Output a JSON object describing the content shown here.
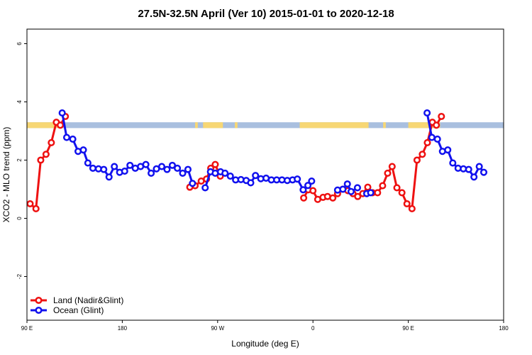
{
  "chart_data": {
    "type": "line",
    "title": "27.5N-32.5N April (Ver 10)   2015-01-01 to 2020-12-18",
    "xlabel": "Longitude (deg E)",
    "ylabel": "XCO2 - MLO trend (ppm)",
    "xlim": [
      90,
      270
    ],
    "ylim": [
      -3.5,
      6.5
    ],
    "x_ticks": [
      {
        "value": 90,
        "label": "90 E"
      },
      {
        "value": 126,
        "label": "180"
      },
      {
        "value": 162,
        "label": "90 W"
      },
      {
        "value": 198,
        "label": "0"
      },
      {
        "value": 234,
        "label": "90 E"
      },
      {
        "value": 270,
        "label": "180"
      }
    ],
    "y_ticks": [
      {
        "value": -2,
        "label": "-2"
      },
      {
        "value": 0,
        "label": "0"
      },
      {
        "value": 2,
        "label": "2"
      },
      {
        "value": 4,
        "label": "4"
      },
      {
        "value": 6,
        "label": "6"
      }
    ],
    "map_strip": {
      "y_range": [
        3.1,
        3.3
      ],
      "land_color": "#f7d774",
      "ocean_color": "#a9bfdf",
      "land_segments_x": [
        [
          90,
          102
        ],
        [
          153.5,
          154.5
        ],
        [
          156.5,
          164
        ],
        [
          168.5,
          169.5
        ],
        [
          193,
          219
        ],
        [
          224.5,
          225.5
        ],
        [
          234,
          246
        ]
      ]
    },
    "series": [
      {
        "name": "Land (Nadir&Glint)",
        "color": "#ee1111",
        "segments": [
          [
            [
              91.2,
              0.5
            ],
            [
              93.4,
              0.33
            ],
            [
              95.2,
              2.0
            ],
            [
              97.2,
              2.2
            ],
            [
              99.2,
              2.6
            ],
            [
              101.1,
              3.3
            ],
            [
              102.6,
              3.2
            ],
            [
              104.5,
              3.5
            ]
          ],
          [
            [
              151.5,
              1.07
            ],
            [
              153.5,
              1.12
            ],
            [
              155.8,
              1.28
            ],
            [
              157.8,
              1.35
            ],
            [
              159.4,
              1.72
            ],
            [
              161.1,
              1.85
            ],
            [
              163.0,
              1.45
            ]
          ],
          [
            [
              194.5,
              0.7
            ],
            [
              196.2,
              0.98
            ],
            [
              198.0,
              0.95
            ],
            [
              199.8,
              0.65
            ],
            [
              201.8,
              0.72
            ],
            [
              203.5,
              0.75
            ],
            [
              205.5,
              0.7
            ],
            [
              207.3,
              0.85
            ],
            [
              209.3,
              1.0
            ],
            [
              211.2,
              0.95
            ],
            [
              213.1,
              0.85
            ],
            [
              214.9,
              0.75
            ],
            [
              216.8,
              0.85
            ],
            [
              218.7,
              1.07
            ],
            [
              220.5,
              0.88
            ],
            [
              222.4,
              0.88
            ],
            [
              224.3,
              1.12
            ],
            [
              226.2,
              1.55
            ],
            [
              227.9,
              1.78
            ],
            [
              229.7,
              1.05
            ],
            [
              231.6,
              0.88
            ],
            [
              233.5,
              0.5
            ],
            [
              235.4,
              0.33
            ],
            [
              237.3,
              2.0
            ],
            [
              239.3,
              2.2
            ],
            [
              241.2,
              2.6
            ],
            [
              243.1,
              3.3
            ],
            [
              244.6,
              3.2
            ],
            [
              246.5,
              3.5
            ]
          ]
        ]
      },
      {
        "name": "Ocean (Glint)",
        "color": "#1111ee",
        "segments": [
          [
            [
              103.3,
              3.62
            ],
            [
              105.0,
              2.78
            ],
            [
              107.3,
              2.72
            ],
            [
              109.3,
              2.3
            ],
            [
              111.3,
              2.35
            ],
            [
              113.0,
              1.9
            ],
            [
              114.9,
              1.72
            ],
            [
              117.0,
              1.7
            ],
            [
              119.0,
              1.68
            ],
            [
              121.0,
              1.42
            ],
            [
              123.0,
              1.78
            ],
            [
              125.0,
              1.58
            ],
            [
              126.9,
              1.62
            ],
            [
              128.9,
              1.82
            ],
            [
              130.9,
              1.72
            ],
            [
              132.9,
              1.78
            ],
            [
              134.9,
              1.85
            ],
            [
              136.9,
              1.55
            ],
            [
              138.9,
              1.7
            ],
            [
              140.9,
              1.78
            ],
            [
              142.9,
              1.68
            ],
            [
              144.9,
              1.82
            ],
            [
              146.8,
              1.72
            ],
            [
              148.8,
              1.55
            ],
            [
              150.8,
              1.68
            ],
            [
              152.5,
              1.2
            ]
          ],
          [
            [
              157.3,
              1.05
            ],
            [
              159.3,
              1.6
            ],
            [
              161.1,
              1.55
            ],
            [
              163.1,
              1.6
            ],
            [
              164.8,
              1.55
            ],
            [
              166.8,
              1.45
            ],
            [
              168.8,
              1.32
            ],
            [
              170.8,
              1.33
            ],
            [
              172.8,
              1.3
            ],
            [
              174.5,
              1.22
            ],
            [
              176.3,
              1.47
            ],
            [
              178.3,
              1.36
            ],
            [
              180.3,
              1.38
            ],
            [
              182.3,
              1.32
            ],
            [
              184.3,
              1.32
            ],
            [
              186.3,
              1.32
            ],
            [
              188.3,
              1.3
            ],
            [
              190.3,
              1.32
            ],
            [
              192.1,
              1.35
            ],
            [
              194.3,
              0.98
            ],
            [
              196.1,
              1.13
            ],
            [
              197.5,
              1.28
            ]
          ],
          [
            [
              207.3,
              0.97
            ],
            [
              209.3,
              1.0
            ],
            [
              211.0,
              1.18
            ],
            [
              212.4,
              0.92
            ],
            [
              214.8,
              1.05
            ]
          ],
          [
            [
              218.3,
              0.85
            ],
            [
              219.8,
              0.88
            ]
          ],
          [
            [
              241.1,
              3.62
            ],
            [
              242.9,
              2.78
            ],
            [
              245.0,
              2.72
            ],
            [
              246.9,
              2.3
            ],
            [
              248.9,
              2.35
            ],
            [
              250.8,
              1.9
            ],
            [
              252.8,
              1.72
            ],
            [
              254.8,
              1.7
            ],
            [
              256.8,
              1.68
            ],
            [
              258.8,
              1.42
            ],
            [
              260.8,
              1.78
            ],
            [
              262.5,
              1.58
            ]
          ]
        ]
      }
    ],
    "legend": {
      "position": "bottom-left"
    }
  }
}
